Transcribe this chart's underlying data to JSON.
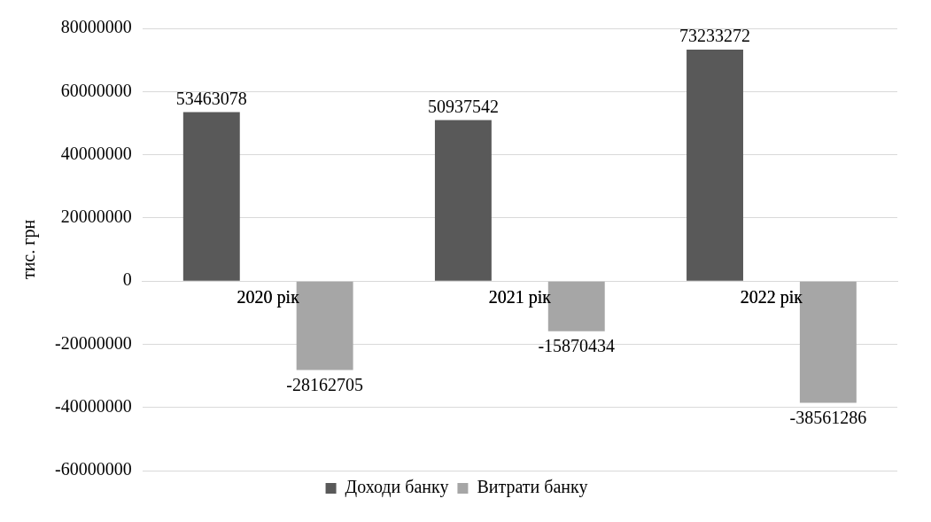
{
  "chart_data": {
    "type": "bar",
    "ylabel": "тис. грн",
    "categories": [
      "2020 рік",
      "2021 рік",
      "2022 рік"
    ],
    "series": [
      {
        "name": "Доходи банку",
        "color": "#595959",
        "values": [
          53463078,
          50937542,
          73233272
        ]
      },
      {
        "name": "Витрати банку",
        "color": "#a6a6a6",
        "values": [
          -28162705,
          -15870434,
          -38561286
        ]
      }
    ],
    "ylim": [
      -60000000,
      80000000
    ],
    "yticks": [
      -60000000,
      -40000000,
      -20000000,
      0,
      20000000,
      40000000,
      60000000,
      80000000
    ],
    "grid": "y",
    "legend": "bottom",
    "data_labels": true
  }
}
